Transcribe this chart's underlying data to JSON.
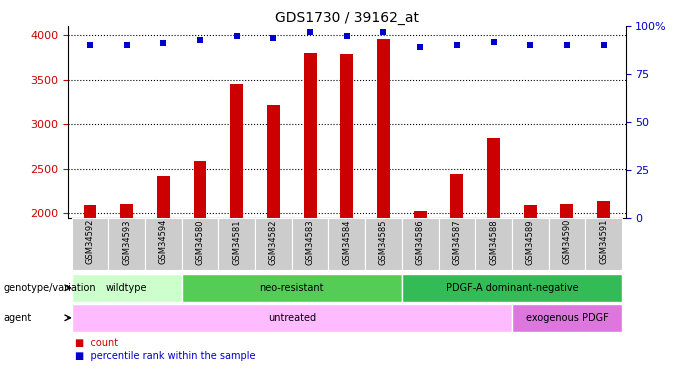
{
  "title": "GDS1730 / 39162_at",
  "samples": [
    "GSM34592",
    "GSM34593",
    "GSM34594",
    "GSM34580",
    "GSM34581",
    "GSM34582",
    "GSM34583",
    "GSM34584",
    "GSM34585",
    "GSM34586",
    "GSM34587",
    "GSM34588",
    "GSM34589",
    "GSM34590",
    "GSM34591"
  ],
  "counts": [
    2090,
    2100,
    2420,
    2580,
    3450,
    3220,
    3800,
    3790,
    3960,
    2020,
    2440,
    2840,
    2085,
    2100,
    2140
  ],
  "percentiles": [
    90,
    90,
    91,
    93,
    95,
    94,
    97,
    95,
    97,
    89,
    90,
    92,
    90,
    90,
    90
  ],
  "ylim_left": [
    1950,
    4100
  ],
  "ylim_right": [
    0,
    100
  ],
  "yticks_left": [
    2000,
    2500,
    3000,
    3500,
    4000
  ],
  "yticks_right": [
    0,
    25,
    50,
    75,
    100
  ],
  "bar_color": "#cc0000",
  "dot_color": "#0000cc",
  "bar_bottom": 1950,
  "genotype_groups": [
    {
      "label": "wildtype",
      "start": 0,
      "end": 3,
      "color": "#ccffcc"
    },
    {
      "label": "neo-resistant",
      "start": 3,
      "end": 9,
      "color": "#55cc55"
    },
    {
      "label": "PDGF-A dominant-negative",
      "start": 9,
      "end": 15,
      "color": "#33bb55"
    }
  ],
  "agent_groups": [
    {
      "label": "untreated",
      "start": 0,
      "end": 12,
      "color": "#ffbbff"
    },
    {
      "label": "exogenous PDGF",
      "start": 12,
      "end": 15,
      "color": "#dd77dd"
    }
  ],
  "legend_count_label": "count",
  "legend_percentile_label": "percentile rank within the sample",
  "xlabel_genotype": "genotype/variation",
  "xlabel_agent": "agent",
  "bar_color_red": "#cc0000",
  "dot_color_blue": "#0000cc",
  "tick_label_color": "#cc0000",
  "right_tick_color": "#0000cc",
  "xticklabel_bg": "#cccccc"
}
